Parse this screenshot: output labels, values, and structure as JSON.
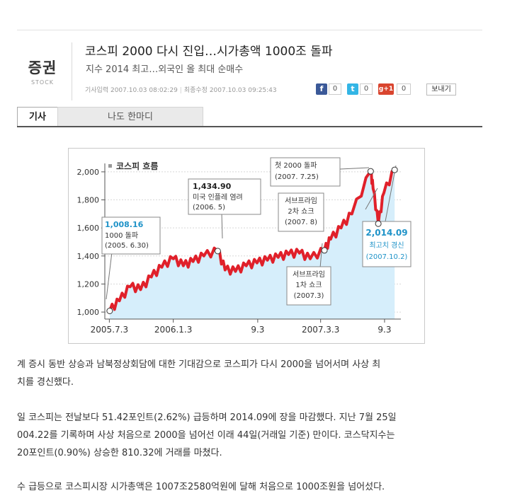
{
  "section": {
    "label": "증권",
    "sublabel": "STOCK"
  },
  "article": {
    "title": "코스피 2000 다시 진입…시가총액 1000조 돌파",
    "subtitle": "지수 2014 최고…외국인 올 최대 순매수",
    "published": "기사입력 2007.10.03 08:02:29",
    "modified": "최종수정 2007.10.03 09:25:43"
  },
  "share": {
    "facebook_count": "0",
    "twitter_count": "0",
    "gplus_label": "g+1",
    "gplus_count": "0",
    "send_label": "보내기"
  },
  "tabs": [
    {
      "label": "기사",
      "active": true
    },
    {
      "label": "나도 한마디",
      "active": false
    }
  ],
  "chart_data": {
    "type": "area",
    "title": "코스피 흐름",
    "y_ticks": [
      "2,000",
      "1,800",
      "1,600",
      "1,400",
      "1,200",
      "1,000"
    ],
    "x_ticks": [
      "2005.7.3",
      "2006.1.3",
      "9.3",
      "2007.3.3",
      "9.3"
    ],
    "ylim": [
      950,
      2060
    ],
    "grid": true,
    "series": [
      {
        "x": [
          "2005-07-04",
          "2005-08-01",
          "2005-09-01",
          "2005-10-01",
          "2005-11-01",
          "2005-12-01",
          "2006-01-03",
          "2006-02-01",
          "2006-03-01",
          "2006-04-01",
          "2006-05-11",
          "2006-06-01",
          "2006-07-01",
          "2006-08-01",
          "2006-09-01",
          "2006-10-01",
          "2006-11-01",
          "2006-12-01",
          "2007-01-01",
          "2007-02-01",
          "2007-03-14",
          "2007-04-01",
          "2007-05-01",
          "2007-06-01",
          "2007-07-25",
          "2007-08-01",
          "2007-08-16",
          "2007-09-01",
          "2007-10-02"
        ],
        "y": [
          1008,
          1080,
          1180,
          1160,
          1250,
          1320,
          1380,
          1330,
          1360,
          1400,
          1435,
          1300,
          1290,
          1330,
          1350,
          1370,
          1390,
          1410,
          1420,
          1380,
          1440,
          1520,
          1600,
          1700,
          2004,
          1880,
          1630,
          1850,
          2014
        ]
      }
    ],
    "annotations": [
      {
        "value": "1,008.16",
        "text": [
          "1000 돌파",
          "(2005. 6.30)"
        ]
      },
      {
        "value": "1,434.90",
        "text": [
          "미국 인플레 염려",
          "(2006. 5)"
        ]
      },
      {
        "value": "",
        "text": [
          "서브프라임",
          "1차 쇼크",
          "(2007.3)"
        ]
      },
      {
        "value": "",
        "text": [
          "첫 2000 돌파",
          "(2007. 7.25)"
        ]
      },
      {
        "value": "",
        "text": [
          "서브프라임",
          "2차 쇼크",
          "(2007. 8)"
        ]
      },
      {
        "value": "2,014.09",
        "text": [
          "최고치 경신",
          "(2007.10.2)"
        ]
      }
    ]
  },
  "body_lines": [
    "계 증시 동반 상승과 남북정상회담에 대한 기대감으로 코스피가 다시 2000을 넘어서며 사상 최",
    "치를 경신했다.",
    "일 코스피는 전날보다 51.42포인트(2.62%) 급등하며 2014.09에 장을 마감했다. 지난 7월 25일",
    "004.22를 기록하며 사상 처음으로 2000을 넘어선 이래 44일(거래일 기준) 만이다. 코스닥지수는",
    "20포인트(0.90%) 상승한 810.32에 거래를 마쳤다.",
    "수 급등으로 코스피시장 시가총액은 1007조2580억원에 달해 처음으로 1000조원을 넘어섰다."
  ]
}
